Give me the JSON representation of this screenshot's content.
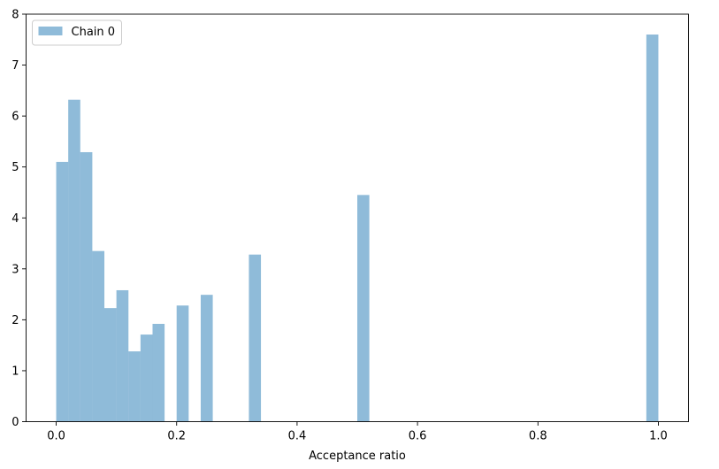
{
  "chart_data": {
    "type": "bar",
    "title": "",
    "xlabel": "Acceptance ratio",
    "ylabel": "",
    "xlim": [
      -0.05,
      1.05
    ],
    "ylim": [
      0,
      8
    ],
    "xticks": [
      0.0,
      0.2,
      0.4,
      0.6,
      0.8,
      1.0
    ],
    "xtick_labels": [
      "0.0",
      "0.2",
      "0.4",
      "0.6",
      "0.8",
      "1.0"
    ],
    "yticks": [
      0,
      1,
      2,
      3,
      4,
      5,
      6,
      7,
      8
    ],
    "ytick_labels": [
      "0",
      "1",
      "2",
      "3",
      "4",
      "5",
      "6",
      "7",
      "8"
    ],
    "grid": false,
    "legend_position": "top-left",
    "bin_width": 0.02,
    "series": [
      {
        "name": "Chain 0",
        "color": "#1f77b4",
        "alpha": 0.5,
        "bins": [
          {
            "x0": 0.0,
            "x1": 0.02,
            "y": 5.1
          },
          {
            "x0": 0.02,
            "x1": 0.04,
            "y": 6.32
          },
          {
            "x0": 0.04,
            "x1": 0.06,
            "y": 5.29
          },
          {
            "x0": 0.06,
            "x1": 0.08,
            "y": 3.35
          },
          {
            "x0": 0.08,
            "x1": 0.1,
            "y": 2.23
          },
          {
            "x0": 0.1,
            "x1": 0.12,
            "y": 2.58
          },
          {
            "x0": 0.12,
            "x1": 0.14,
            "y": 1.38
          },
          {
            "x0": 0.14,
            "x1": 0.16,
            "y": 1.71
          },
          {
            "x0": 0.16,
            "x1": 0.18,
            "y": 1.92
          },
          {
            "x0": 0.2,
            "x1": 0.22,
            "y": 2.28
          },
          {
            "x0": 0.24,
            "x1": 0.26,
            "y": 2.49
          },
          {
            "x0": 0.32,
            "x1": 0.34,
            "y": 3.28
          },
          {
            "x0": 0.5,
            "x1": 0.52,
            "y": 4.45
          },
          {
            "x0": 0.98,
            "x1": 1.0,
            "y": 7.6
          }
        ]
      }
    ]
  }
}
